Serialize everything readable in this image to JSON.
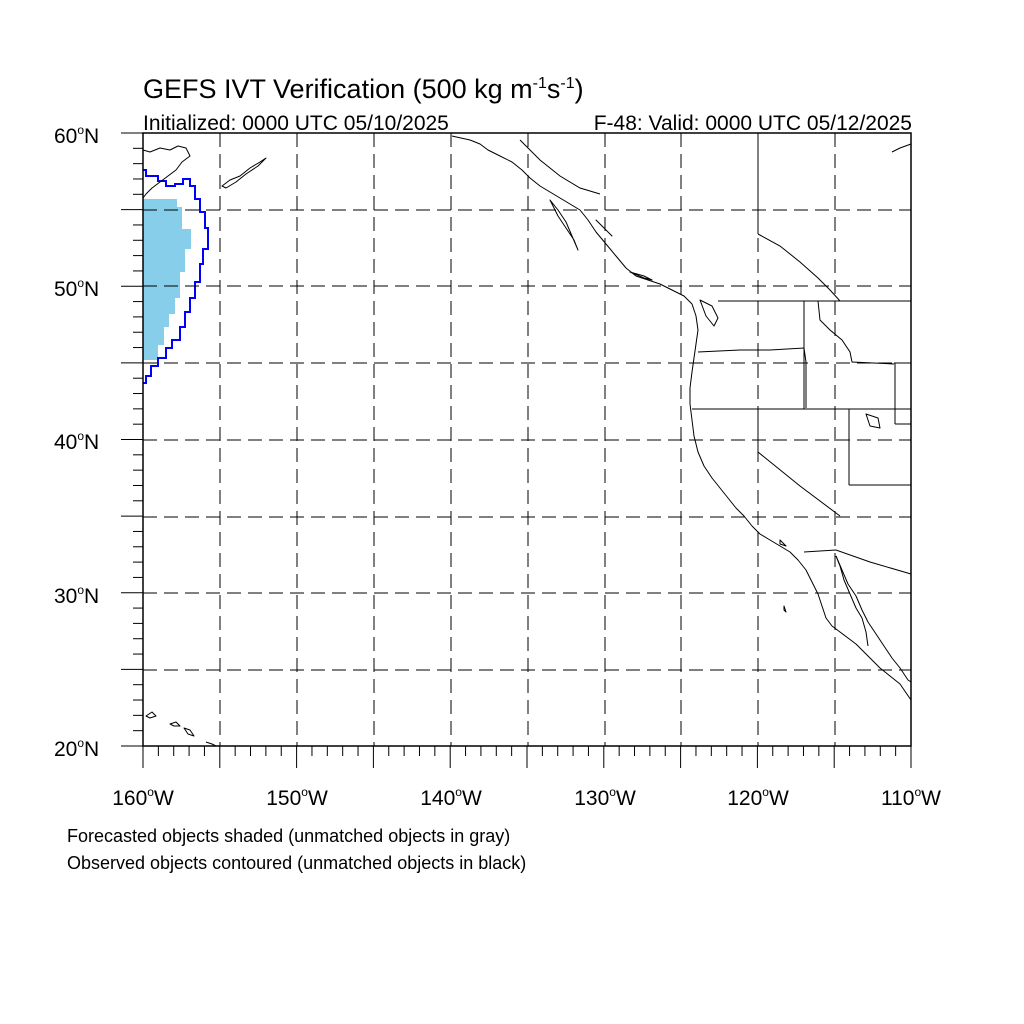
{
  "title": {
    "prefix": "GEFS IVT Verification (500 kg m",
    "sup1": "-1",
    "mid": "s",
    "sup2": "-1",
    "suffix": ")"
  },
  "subtitle_left": "Initialized: 0000 UTC 05/10/2025",
  "subtitle_right": "F-48: Valid: 0000 UTC 05/12/2025",
  "lat_labels": [
    {
      "deg": "60",
      "hemi": "N"
    },
    {
      "deg": "50",
      "hemi": "N"
    },
    {
      "deg": "40",
      "hemi": "N"
    },
    {
      "deg": "30",
      "hemi": "N"
    },
    {
      "deg": "20",
      "hemi": "N"
    }
  ],
  "lon_labels": [
    {
      "deg": "160",
      "hemi": "W"
    },
    {
      "deg": "150",
      "hemi": "W"
    },
    {
      "deg": "140",
      "hemi": "W"
    },
    {
      "deg": "130",
      "hemi": "W"
    },
    {
      "deg": "120",
      "hemi": "W"
    },
    {
      "deg": "110",
      "hemi": "W"
    }
  ],
  "caption_line1": "Forecasted objects shaded (unmatched objects in gray)",
  "caption_line2": "Observed objects contoured (unmatched objects in black)",
  "colors": {
    "forecast_fill": "#87ceeb",
    "observed_contour": "#0000ff",
    "coastline": "#000000",
    "grid": "#000000"
  }
}
